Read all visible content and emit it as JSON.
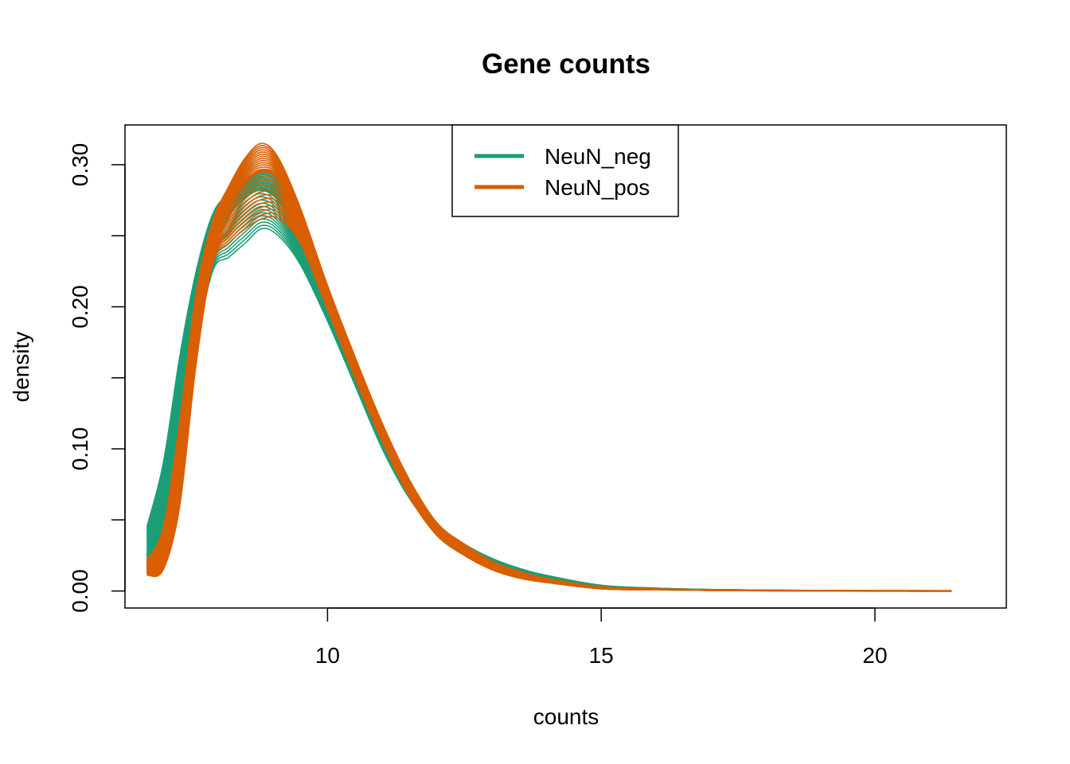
{
  "chart_data": {
    "type": "line",
    "title": "Gene counts",
    "xlabel": "counts",
    "ylabel": "density",
    "xlim": [
      6.3,
      22.4
    ],
    "ylim": [
      -0.012,
      0.328
    ],
    "x_ticks": [
      10,
      15,
      20
    ],
    "x_tick_labels": [
      "10",
      "15",
      "20"
    ],
    "y_ticks": [
      0.0,
      0.05,
      0.1,
      0.15,
      0.2,
      0.25,
      0.3
    ],
    "y_tick_labels": [
      "0.00",
      "",
      "0.10",
      "",
      "0.20",
      "",
      "0.30"
    ],
    "grid": false,
    "legend_position": "top-center",
    "legend": [
      {
        "name": "NeuN_neg",
        "color": "#1B9E77"
      },
      {
        "name": "NeuN_pos",
        "color": "#D95F02"
      }
    ],
    "groups": [
      {
        "name": "NeuN_neg",
        "color": "#1B9E77",
        "x": [
          6.7,
          7.0,
          7.3,
          7.6,
          7.9,
          8.2,
          8.5,
          8.8,
          9.1,
          9.5,
          10.0,
          10.5,
          11.0,
          11.5,
          12.0,
          12.5,
          13.0,
          13.5,
          14.0,
          15.0,
          16.0,
          17.0,
          18.0,
          19.0,
          20.0,
          21.4
        ],
        "representative_values": [
          0.025,
          0.06,
          0.13,
          0.2,
          0.245,
          0.265,
          0.278,
          0.283,
          0.275,
          0.245,
          0.2,
          0.15,
          0.105,
          0.068,
          0.044,
          0.03,
          0.02,
          0.014,
          0.009,
          0.003,
          0.0015,
          0.0008,
          0.0004,
          0.0002,
          0.0001,
          0.0
        ],
        "min_values": [
          0.012,
          0.035,
          0.09,
          0.17,
          0.225,
          0.235,
          0.245,
          0.255,
          0.25,
          0.23,
          0.19,
          0.145,
          0.1,
          0.065,
          0.041,
          0.028,
          0.018,
          0.012,
          0.008,
          0.002,
          0.001,
          0.0005,
          0.0003,
          0.0001,
          0.0,
          0.0
        ],
        "max_values": [
          0.045,
          0.09,
          0.165,
          0.225,
          0.265,
          0.28,
          0.29,
          0.295,
          0.29,
          0.26,
          0.21,
          0.155,
          0.11,
          0.072,
          0.047,
          0.033,
          0.023,
          0.016,
          0.011,
          0.004,
          0.002,
          0.001,
          0.0006,
          0.0003,
          0.0001,
          0.0
        ]
      },
      {
        "name": "NeuN_pos",
        "color": "#D95F02",
        "x": [
          6.7,
          7.0,
          7.3,
          7.6,
          7.9,
          8.2,
          8.5,
          8.8,
          9.1,
          9.5,
          10.0,
          10.5,
          11.0,
          11.5,
          12.0,
          12.5,
          13.0,
          13.5,
          14.0,
          15.0,
          16.0,
          17.0,
          18.0,
          19.0,
          20.0,
          21.4
        ],
        "representative_values": [
          0.015,
          0.028,
          0.09,
          0.185,
          0.245,
          0.27,
          0.288,
          0.296,
          0.29,
          0.255,
          0.205,
          0.155,
          0.11,
          0.07,
          0.042,
          0.028,
          0.017,
          0.011,
          0.007,
          0.002,
          0.001,
          0.0006,
          0.0003,
          0.0002,
          0.0001,
          0.0
        ],
        "min_values": [
          0.011,
          0.015,
          0.06,
          0.16,
          0.23,
          0.245,
          0.255,
          0.262,
          0.262,
          0.245,
          0.198,
          0.15,
          0.105,
          0.066,
          0.039,
          0.025,
          0.015,
          0.009,
          0.006,
          0.0015,
          0.0008,
          0.0004,
          0.0002,
          0.0001,
          0.0,
          0.0
        ],
        "max_values": [
          0.022,
          0.045,
          0.12,
          0.21,
          0.26,
          0.285,
          0.305,
          0.315,
          0.305,
          0.27,
          0.215,
          0.165,
          0.118,
          0.078,
          0.048,
          0.033,
          0.021,
          0.014,
          0.009,
          0.003,
          0.0015,
          0.0008,
          0.0004,
          0.0002,
          0.0001,
          0.0
        ]
      }
    ]
  }
}
